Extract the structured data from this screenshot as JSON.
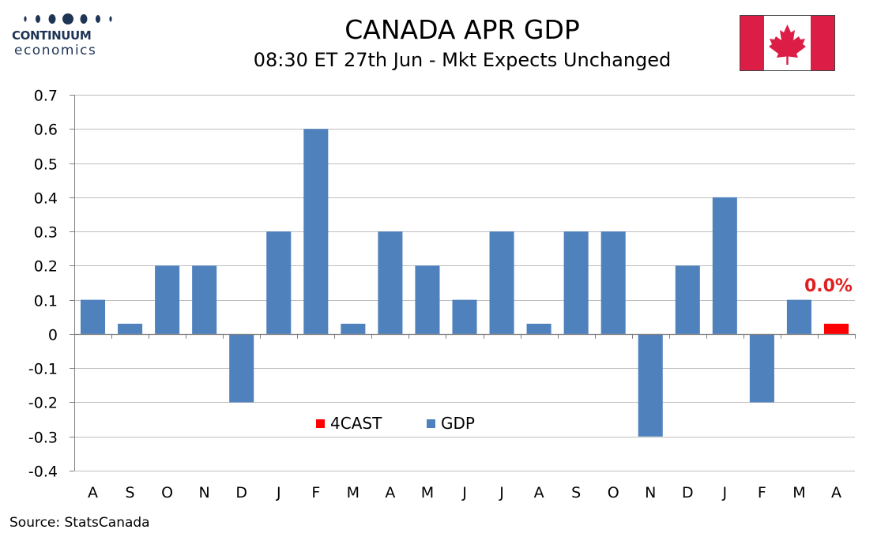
{
  "header": {
    "logo_name": "CONTINUUM",
    "logo_sub": "economics",
    "title": "CANADA APR GDP",
    "subtitle": "08:30 ET 27th Jun - Mkt Expects Unchanged"
  },
  "source": "Source: StatsCanada",
  "colors": {
    "gdp": "#4f81bd",
    "forecast": "#ff0000",
    "forecast_label": "#e02020",
    "logo": "#1f3556",
    "flag_red": "#dc1e46",
    "grid": "#bfbfbf"
  },
  "icons": {
    "flag": "canada-flag-icon",
    "logo": "continuum-economics-logo"
  },
  "legend": {
    "forecast": "4CAST",
    "gdp": "GDP",
    "placement": "bottom-center"
  },
  "chart_data": {
    "type": "bar",
    "title": "CANADA APR GDP",
    "subtitle": "08:30 ET 27th Jun - Mkt Expects Unchanged",
    "categories": [
      "A",
      "S",
      "O",
      "N",
      "D",
      "J",
      "F",
      "M",
      "A",
      "M",
      "J",
      "J",
      "A",
      "S",
      "O",
      "N",
      "D",
      "J",
      "F",
      "M",
      "A"
    ],
    "series": [
      {
        "name": "GDP",
        "values": [
          0.1,
          0.03,
          0.2,
          0.2,
          -0.2,
          0.3,
          0.6,
          0.03,
          0.3,
          0.2,
          0.1,
          0.3,
          0.03,
          0.3,
          0.3,
          -0.3,
          0.2,
          0.4,
          -0.2,
          0.1,
          null
        ]
      },
      {
        "name": "4CAST",
        "values": [
          null,
          null,
          null,
          null,
          null,
          null,
          null,
          null,
          null,
          null,
          null,
          null,
          null,
          null,
          null,
          null,
          null,
          null,
          null,
          null,
          0.03
        ]
      }
    ],
    "annotation": "0.0%",
    "ylim": [
      -0.4,
      0.7
    ],
    "yticks": [
      "0.7",
      "0.6",
      "0.5",
      "0.4",
      "0.3",
      "0.2",
      "0.1",
      "0",
      "-0.1",
      "-0.2",
      "-0.3",
      "-0.4"
    ],
    "xlabel": "",
    "ylabel": "",
    "grid": true
  }
}
